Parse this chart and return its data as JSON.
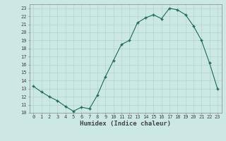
{
  "x": [
    0,
    1,
    2,
    3,
    4,
    5,
    6,
    7,
    8,
    9,
    10,
    11,
    12,
    13,
    14,
    15,
    16,
    17,
    18,
    19,
    20,
    21,
    22,
    23
  ],
  "y": [
    13.3,
    12.6,
    12.0,
    11.5,
    10.8,
    10.2,
    10.7,
    10.5,
    12.2,
    14.5,
    16.5,
    18.5,
    19.0,
    21.2,
    21.8,
    22.2,
    21.7,
    23.0,
    22.8,
    22.2,
    20.8,
    19.0,
    16.2,
    13.0
  ],
  "xlabel": "Humidex (Indice chaleur)",
  "xlim": [
    -0.5,
    23.5
  ],
  "ylim": [
    10,
    23.5
  ],
  "yticks": [
    10,
    11,
    12,
    13,
    14,
    15,
    16,
    17,
    18,
    19,
    20,
    21,
    22,
    23
  ],
  "xticks": [
    0,
    1,
    2,
    3,
    4,
    5,
    6,
    7,
    8,
    9,
    10,
    11,
    12,
    13,
    14,
    15,
    16,
    17,
    18,
    19,
    20,
    21,
    22,
    23
  ],
  "line_color": "#1a6b5a",
  "marker_color": "#1a6b5a",
  "bg_color": "#cce8e4",
  "grid_color": "#b0d4ce",
  "font_color": "#444444",
  "tick_fontsize": 5.0,
  "xlabel_fontsize": 6.5
}
